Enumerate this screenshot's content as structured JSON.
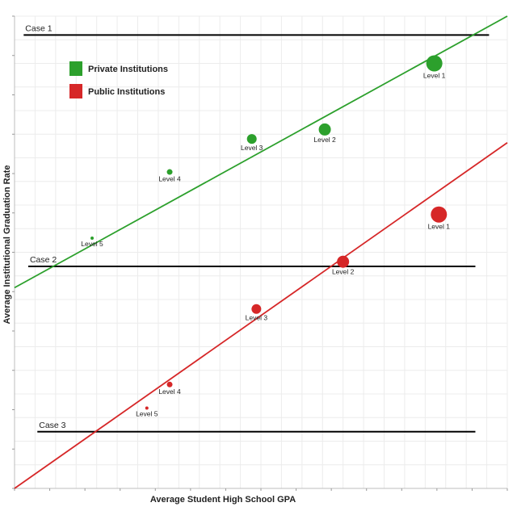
{
  "chart_data": {
    "type": "scatter",
    "xlabel": "Average Student High School GPA",
    "ylabel": "Average Institutional Graduation Rate",
    "grid": true,
    "legend_position": "top-left",
    "series": [
      {
        "name": "Private Institutions",
        "color": "#2ca02c",
        "points": [
          {
            "label": "Level 1",
            "x": 92,
            "y": 90,
            "size": 5
          },
          {
            "label": "Level 2",
            "x": 68,
            "y": 76,
            "size": 4
          },
          {
            "label": "Level 3",
            "x": 52,
            "y": 74,
            "size": 3
          },
          {
            "label": "Level 4",
            "x": 34,
            "y": 67,
            "size": 2
          },
          {
            "label": "Level 5",
            "x": 17,
            "y": 53,
            "size": 1
          }
        ],
        "trend": {
          "x": [
            0,
            108
          ],
          "y": [
            42.5,
            100
          ]
        }
      },
      {
        "name": "Public Institutions",
        "color": "#d62728",
        "points": [
          {
            "label": "Level 1",
            "x": 93,
            "y": 58,
            "size": 5
          },
          {
            "label": "Level 2",
            "x": 72,
            "y": 48,
            "size": 4
          },
          {
            "label": "Level 3",
            "x": 53,
            "y": 38,
            "size": 3
          },
          {
            "label": "Level 4",
            "x": 34,
            "y": 22,
            "size": 2
          },
          {
            "label": "Level 5",
            "x": 29,
            "y": 17,
            "size": 1
          }
        ],
        "trend": {
          "x": [
            0,
            108
          ],
          "y": [
            0,
            73.2
          ]
        }
      }
    ],
    "reference_lines": [
      {
        "label": "Case 1",
        "y": 96,
        "x_range": [
          2,
          104
        ]
      },
      {
        "label": "Case 2",
        "y": 47,
        "x_range": [
          3,
          101
        ]
      },
      {
        "label": "Case 3",
        "y": 12,
        "x_range": [
          5,
          101
        ]
      }
    ],
    "xlim": [
      0,
      108
    ],
    "ylim": [
      0,
      100
    ]
  }
}
